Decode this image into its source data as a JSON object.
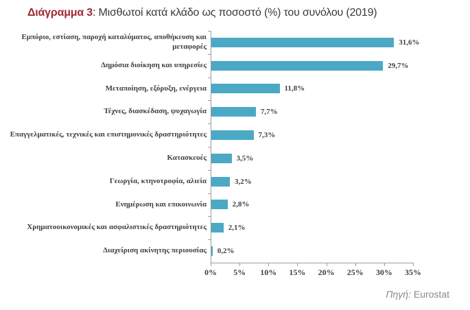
{
  "title": {
    "prefix": "Διάγραμμα 3",
    "rest": ": Μισθωτοί κατά κλάδο ως ποσοστό (%) του συνόλου (2019)"
  },
  "source": {
    "label_italic": "Πηγή:",
    "value": " Eurostat"
  },
  "colors": {
    "bar": "#4ba9c5",
    "axis": "#9c9c9c",
    "title_accent": "#9e2a33",
    "text": "#3f3f3f",
    "source_text": "#8a8a8a"
  },
  "chart_data": {
    "type": "bar",
    "orientation": "horizontal",
    "title": "Διάγραμμα 3: Μισθωτοί κατά κλάδο ως ποσοστό (%) του συνόλου (2019)",
    "categories": [
      "Εμπόριο, εστίαση, παροχή καταλύματος, αποθήκευση και μεταφορές",
      "Δημόσια διοίκηση και υπηρεσίες",
      "Μεταποίηση, εξόρυξη, ενέργεια",
      "Τέχνες, διασκέδαση, ψυχαγωγία",
      "Επαγγελματικές, τεχνικές και επιστημονικές δραστηριότητες",
      "Κατασκευές",
      "Γεωργία, κτηνοτροφία, αλιεία",
      "Ενημέρωση και επικοινωνία",
      "Χρηματοοικονομικές και ασφαλιστικές δραστηριότητες",
      "Διαχείριση ακίνητης περιουσίας"
    ],
    "values": [
      31.6,
      29.7,
      11.8,
      7.7,
      7.3,
      3.5,
      3.2,
      2.8,
      2.1,
      0.2
    ],
    "value_labels": [
      "31,6%",
      "29,7%",
      "11,8%",
      "7,7%",
      "7,3%",
      "3,5%",
      "3,2%",
      "2,8%",
      "2,1%",
      "0,2%"
    ],
    "xlabel": "",
    "ylabel": "",
    "xlim": [
      0,
      35
    ],
    "x_ticks": [
      0,
      5,
      10,
      15,
      20,
      25,
      30,
      35
    ],
    "x_tick_labels": [
      "0%",
      "5%",
      "10%",
      "15%",
      "20%",
      "25%",
      "30%",
      "35%"
    ],
    "grid": false,
    "legend": false,
    "data_labels": true,
    "source_note": "Πηγή: Eurostat"
  }
}
